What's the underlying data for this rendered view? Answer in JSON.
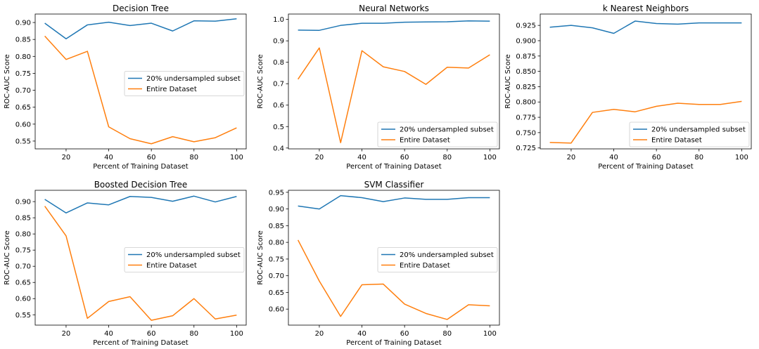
{
  "chart_data": [
    {
      "type": "line",
      "title": "Decision Tree",
      "xlabel": "Percent of Training Dataset",
      "ylabel": "ROC-AUC Score",
      "x": [
        10,
        20,
        30,
        40,
        50,
        60,
        70,
        80,
        90,
        100
      ],
      "xticks": [
        20,
        40,
        60,
        80,
        100
      ],
      "xlim": [
        5.5,
        104.5
      ],
      "ylim": [
        0.527,
        0.925
      ],
      "yticks": [
        0.55,
        0.6,
        0.65,
        0.7,
        0.75,
        0.8,
        0.85,
        0.9
      ],
      "ytick_labels": [
        "0.55",
        "0.60",
        "0.65",
        "0.70",
        "0.75",
        "0.80",
        "0.85",
        "0.90"
      ],
      "legend": "center-right",
      "series": [
        {
          "name": "20% undersampled subset",
          "color": "#1f77b4",
          "values": [
            0.898,
            0.852,
            0.893,
            0.901,
            0.891,
            0.898,
            0.875,
            0.905,
            0.904,
            0.911
          ]
        },
        {
          "name": "Entire Dataset",
          "color": "#ff7f0e",
          "values": [
            0.86,
            0.791,
            0.815,
            0.592,
            0.557,
            0.542,
            0.563,
            0.548,
            0.56,
            0.589
          ]
        }
      ]
    },
    {
      "type": "line",
      "title": "Neural Networks",
      "xlabel": "Percent of Training Dataset",
      "ylabel": "ROC-AUC Score",
      "x": [
        10,
        20,
        30,
        40,
        50,
        60,
        70,
        80,
        90,
        100
      ],
      "xticks": [
        20,
        40,
        60,
        80,
        100
      ],
      "xlim": [
        5.5,
        104.5
      ],
      "ylim": [
        0.396,
        1.025
      ],
      "yticks": [
        0.4,
        0.5,
        0.6,
        0.7,
        0.8,
        0.9,
        1.0
      ],
      "ytick_labels": [
        "0.4",
        "0.5",
        "0.6",
        "0.7",
        "0.8",
        "0.9",
        "1.0"
      ],
      "legend": "lower-right",
      "series": [
        {
          "name": "20% undersampled subset",
          "color": "#1f77b4",
          "values": [
            0.95,
            0.949,
            0.972,
            0.982,
            0.982,
            0.987,
            0.988,
            0.989,
            0.993,
            0.992
          ]
        },
        {
          "name": "Entire Dataset",
          "color": "#ff7f0e",
          "values": [
            0.721,
            0.867,
            0.425,
            0.854,
            0.779,
            0.757,
            0.697,
            0.777,
            0.773,
            0.835
          ]
        }
      ]
    },
    {
      "type": "line",
      "title": "k Nearest Neighbors",
      "xlabel": "Percent of Training Dataset",
      "ylabel": "ROC-AUC Score",
      "x": [
        10,
        20,
        30,
        40,
        50,
        60,
        70,
        80,
        90,
        100
      ],
      "xticks": [
        20,
        40,
        60,
        80,
        100
      ],
      "xlim": [
        5.5,
        104.5
      ],
      "ylim": [
        0.7235,
        0.9435
      ],
      "yticks": [
        0.725,
        0.75,
        0.775,
        0.8,
        0.825,
        0.85,
        0.875,
        0.9,
        0.925
      ],
      "ytick_labels": [
        "0.725",
        "0.750",
        "0.775",
        "0.800",
        "0.825",
        "0.850",
        "0.875",
        "0.900",
        "0.925"
      ],
      "legend": "lower-right",
      "series": [
        {
          "name": "20% undersampled subset",
          "color": "#1f77b4",
          "values": [
            0.922,
            0.925,
            0.921,
            0.912,
            0.932,
            0.928,
            0.927,
            0.929,
            0.929,
            0.929
          ]
        },
        {
          "name": "Entire Dataset",
          "color": "#ff7f0e",
          "values": [
            0.734,
            0.733,
            0.783,
            0.788,
            0.784,
            0.793,
            0.798,
            0.796,
            0.796,
            0.801
          ]
        }
      ]
    },
    {
      "type": "line",
      "title": "Boosted Decision Tree",
      "xlabel": "Percent of Training Dataset",
      "ylabel": "ROC-AUC Score",
      "x": [
        10,
        20,
        30,
        40,
        50,
        60,
        70,
        80,
        90,
        100
      ],
      "xticks": [
        20,
        40,
        60,
        80,
        100
      ],
      "xlim": [
        5.5,
        104.5
      ],
      "ylim": [
        0.518,
        0.935
      ],
      "yticks": [
        0.55,
        0.6,
        0.65,
        0.7,
        0.75,
        0.8,
        0.85,
        0.9
      ],
      "ytick_labels": [
        "0.55",
        "0.60",
        "0.65",
        "0.70",
        "0.75",
        "0.80",
        "0.85",
        "0.90"
      ],
      "legend": "center-right",
      "series": [
        {
          "name": "20% undersampled subset",
          "color": "#1f77b4",
          "values": [
            0.907,
            0.865,
            0.896,
            0.89,
            0.916,
            0.913,
            0.901,
            0.917,
            0.899,
            0.916
          ]
        },
        {
          "name": "Entire Dataset",
          "color": "#ff7f0e",
          "values": [
            0.886,
            0.794,
            0.539,
            0.591,
            0.606,
            0.533,
            0.547,
            0.6,
            0.537,
            0.549
          ]
        }
      ]
    },
    {
      "type": "line",
      "title": "SVM Classifier",
      "xlabel": "Percent of Training Dataset",
      "ylabel": "ROC-AUC Score",
      "x": [
        10,
        20,
        30,
        40,
        50,
        60,
        70,
        80,
        90,
        100
      ],
      "xticks": [
        20,
        40,
        60,
        80,
        100
      ],
      "xlim": [
        5.5,
        104.5
      ],
      "ylim": [
        0.552,
        0.956
      ],
      "yticks": [
        0.6,
        0.65,
        0.7,
        0.75,
        0.8,
        0.85,
        0.9,
        0.95
      ],
      "ytick_labels": [
        "0.60",
        "0.65",
        "0.70",
        "0.75",
        "0.80",
        "0.85",
        "0.90",
        "0.95"
      ],
      "legend": "center-right",
      "series": [
        {
          "name": "20% undersampled subset",
          "color": "#1f77b4",
          "values": [
            0.909,
            0.9,
            0.94,
            0.934,
            0.922,
            0.933,
            0.929,
            0.929,
            0.934,
            0.934
          ]
        },
        {
          "name": "Entire Dataset",
          "color": "#ff7f0e",
          "values": [
            0.807,
            0.684,
            0.578,
            0.673,
            0.675,
            0.615,
            0.587,
            0.569,
            0.613,
            0.61
          ]
        }
      ]
    }
  ]
}
